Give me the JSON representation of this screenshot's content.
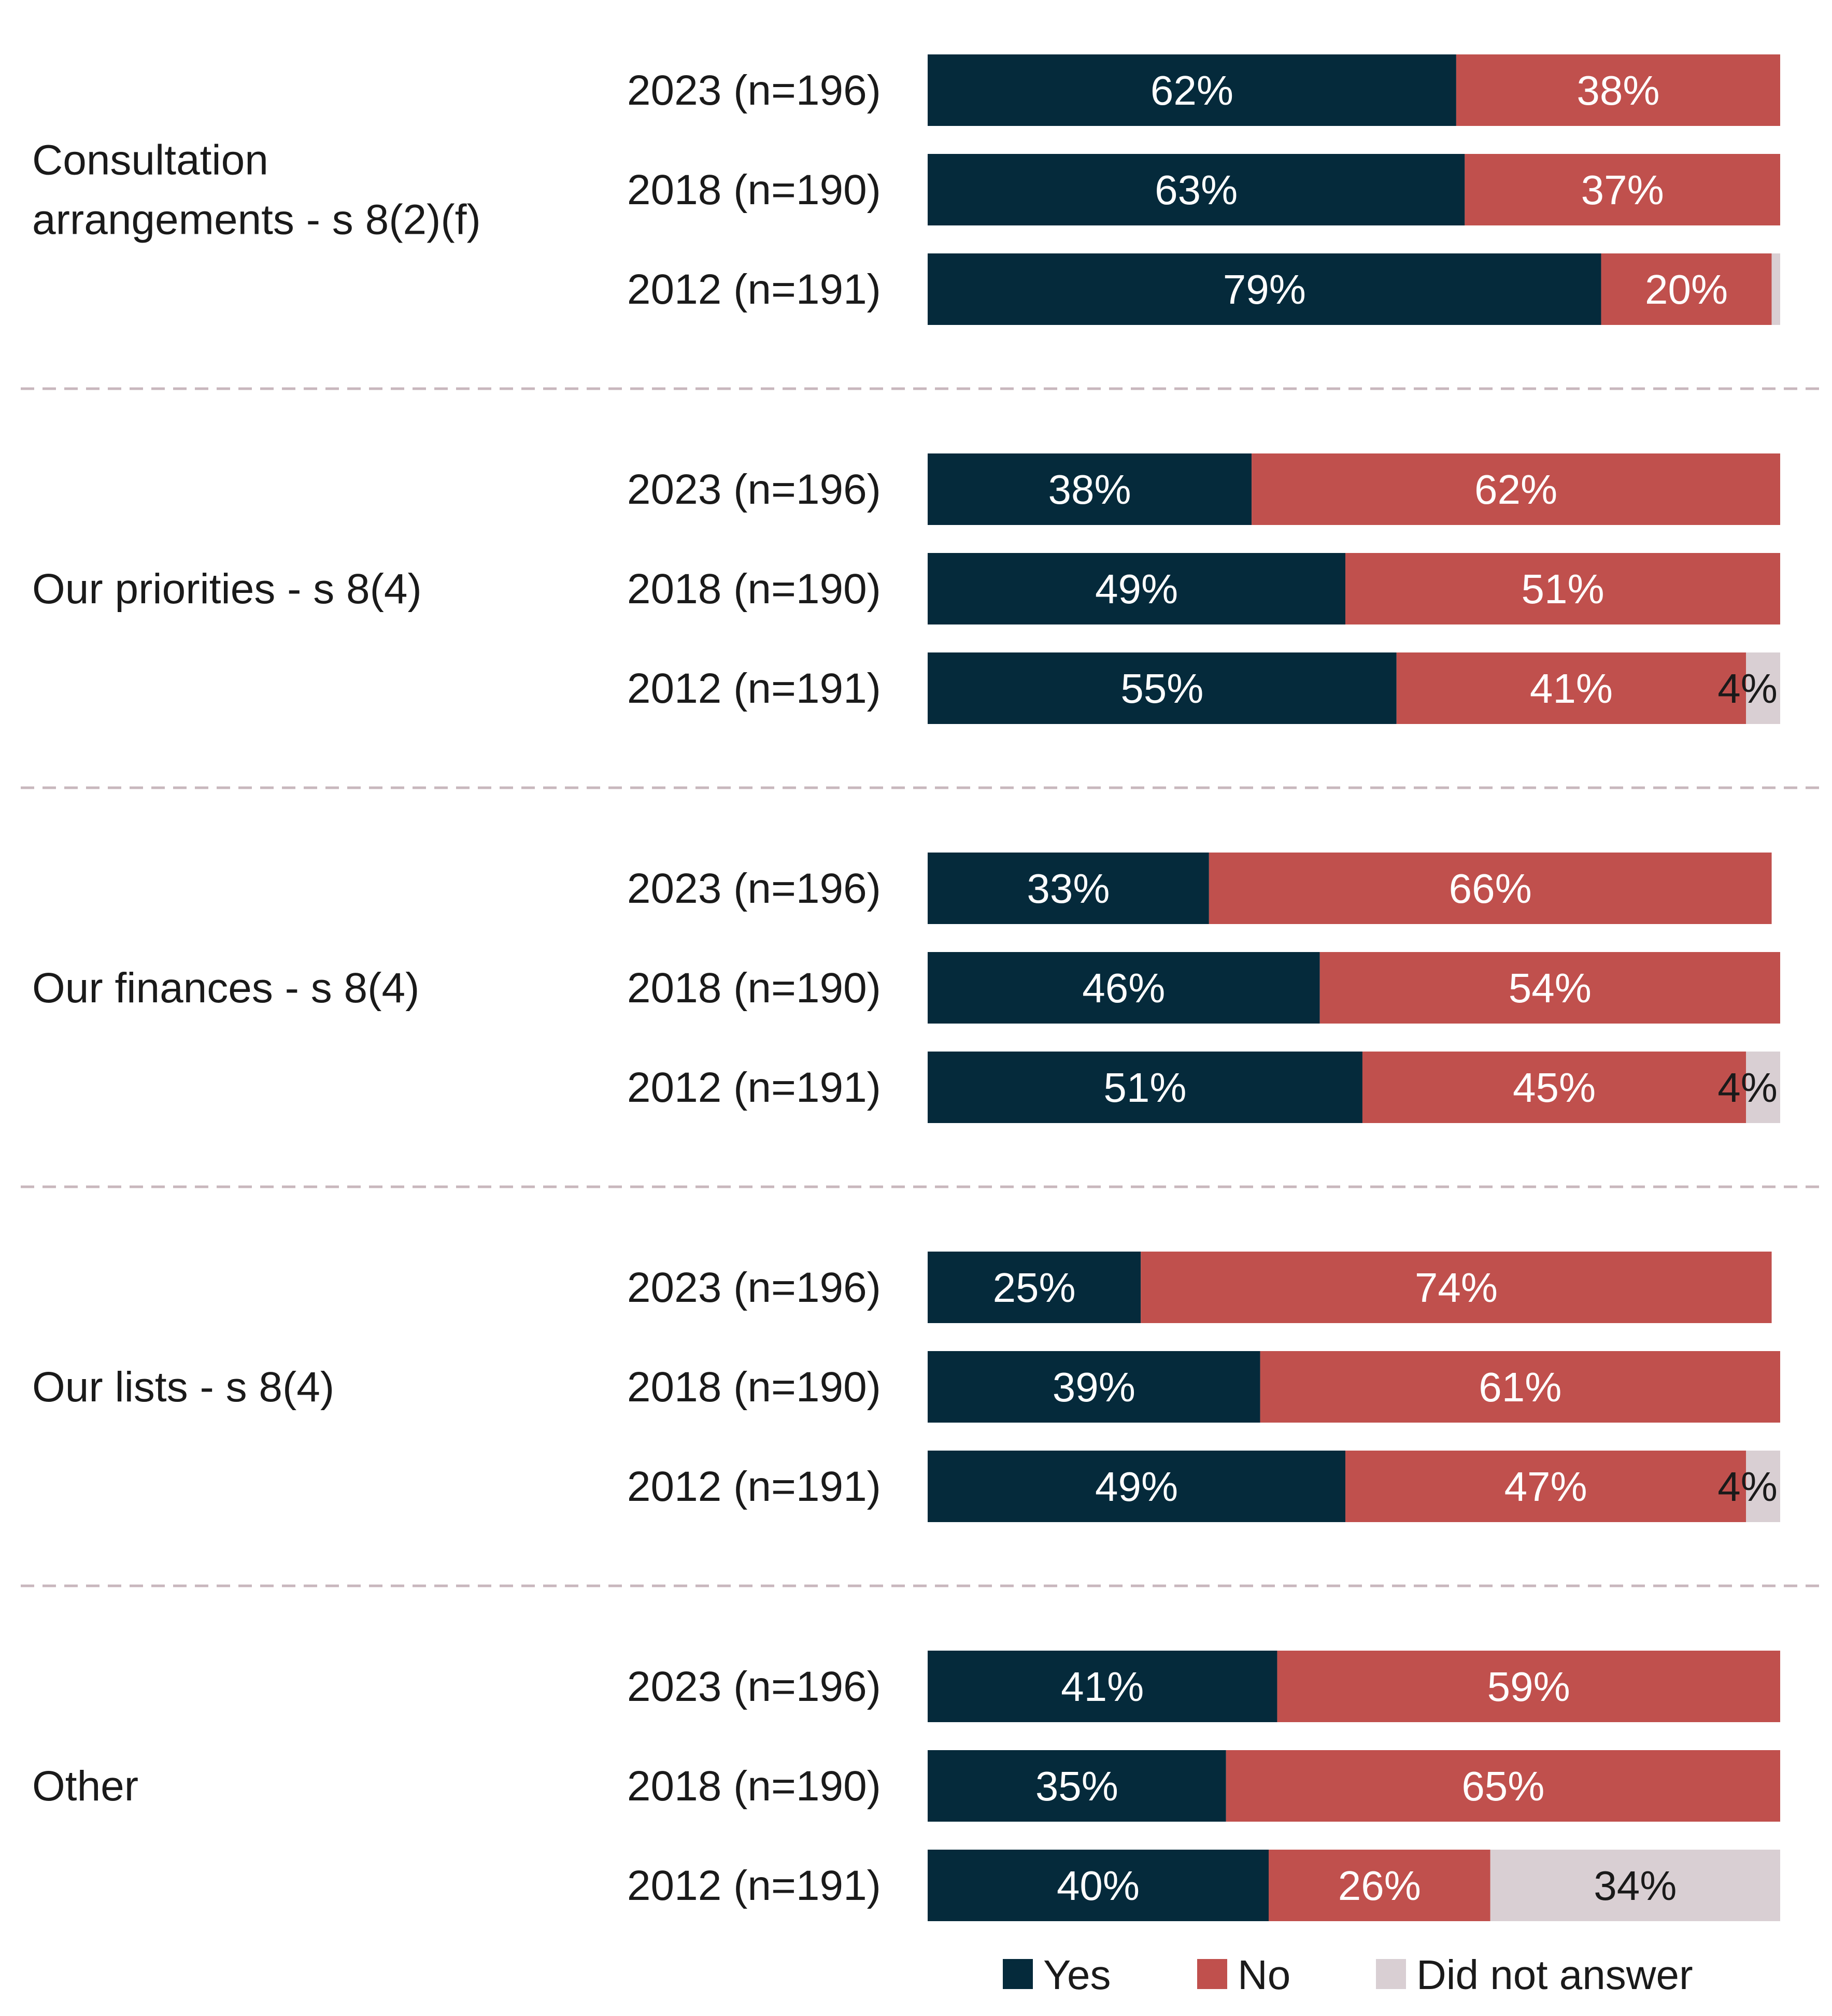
{
  "chart_data": {
    "type": "bar",
    "orientation": "horizontal",
    "stacked": true,
    "title": "",
    "xlabel": "",
    "ylabel": "",
    "xlim": [
      0,
      100
    ],
    "unit": "%",
    "series": [
      {
        "name": "Yes",
        "color": "#052a3b"
      },
      {
        "name": "No",
        "color": "#c0504d"
      },
      {
        "name": "Did not answer",
        "color": "#d9cfd3"
      }
    ],
    "groups": [
      {
        "label_lines": [
          "Consultation",
          "arrangements - s 8(2)(f)"
        ],
        "rows": [
          {
            "label": "2023 (n=196)",
            "values": [
              62,
              38,
              0
            ],
            "labels": [
              "62%",
              "38%",
              ""
            ]
          },
          {
            "label": "2018 (n=190)",
            "values": [
              63,
              37,
              0
            ],
            "labels": [
              "63%",
              "37%",
              ""
            ]
          },
          {
            "label": "2012 (n=191)",
            "values": [
              79,
              20,
              1
            ],
            "labels": [
              "79%",
              "20%",
              ""
            ]
          }
        ]
      },
      {
        "label_lines": [
          "Our priorities - s 8(4)"
        ],
        "rows": [
          {
            "label": "2023 (n=196)",
            "values": [
              38,
              62,
              0
            ],
            "labels": [
              "38%",
              "62%",
              ""
            ]
          },
          {
            "label": "2018 (n=190)",
            "values": [
              49,
              51,
              0
            ],
            "labels": [
              "49%",
              "51%",
              ""
            ]
          },
          {
            "label": "2012 (n=191)",
            "values": [
              55,
              41,
              4
            ],
            "labels": [
              "55%",
              "41%",
              "4%"
            ]
          }
        ]
      },
      {
        "label_lines": [
          "Our finances - s 8(4)"
        ],
        "rows": [
          {
            "label": "2023 (n=196)",
            "values": [
              33,
              66,
              0
            ],
            "labels": [
              "33%",
              "66%",
              ""
            ]
          },
          {
            "label": "2018 (n=190)",
            "values": [
              46,
              54,
              0
            ],
            "labels": [
              "46%",
              "54%",
              ""
            ]
          },
          {
            "label": "2012 (n=191)",
            "values": [
              51,
              45,
              4
            ],
            "labels": [
              "51%",
              "45%",
              "4%"
            ]
          }
        ]
      },
      {
        "label_lines": [
          "Our lists - s 8(4)"
        ],
        "rows": [
          {
            "label": "2023 (n=196)",
            "values": [
              25,
              74,
              0
            ],
            "labels": [
              "25%",
              "74%",
              ""
            ]
          },
          {
            "label": "2018 (n=190)",
            "values": [
              39,
              61,
              0
            ],
            "labels": [
              "39%",
              "61%",
              ""
            ]
          },
          {
            "label": "2012 (n=191)",
            "values": [
              49,
              47,
              4
            ],
            "labels": [
              "49%",
              "47%",
              "4%"
            ]
          }
        ]
      },
      {
        "label_lines": [
          "Other"
        ],
        "rows": [
          {
            "label": "2023 (n=196)",
            "values": [
              41,
              59,
              0
            ],
            "labels": [
              "41%",
              "59%",
              ""
            ]
          },
          {
            "label": "2018 (n=190)",
            "values": [
              35,
              65,
              0
            ],
            "labels": [
              "35%",
              "65%",
              ""
            ]
          },
          {
            "label": "2012 (n=191)",
            "values": [
              40,
              26,
              34
            ],
            "labels": [
              "40%",
              "26%",
              "34%"
            ]
          }
        ]
      }
    ],
    "legend": {
      "position": "bottom-right",
      "items": [
        "Yes",
        "No",
        "Did not answer"
      ]
    },
    "colors": {
      "separator": "#c8b7bd",
      "label_light": "#ffffff",
      "label_dark": "#1a1a1a"
    }
  }
}
